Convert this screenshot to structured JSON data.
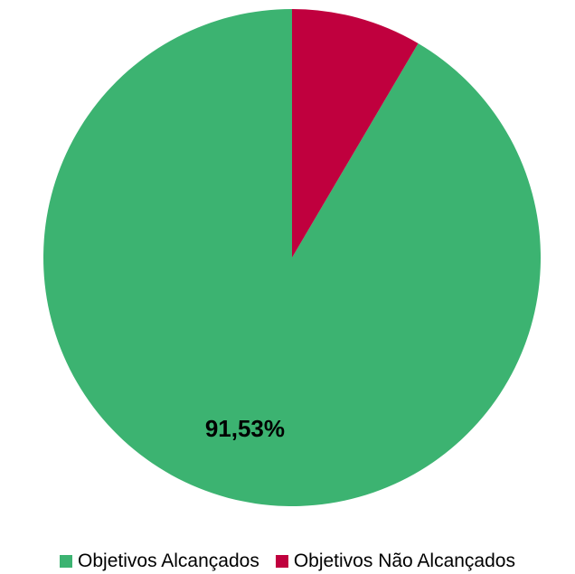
{
  "chart_data": {
    "type": "pie",
    "title": "",
    "series": [
      {
        "name": "Objetivos Alcançados",
        "value": 91.53,
        "label": "91,53%",
        "color": "#3cb371"
      },
      {
        "name": "Objetivos Não Alcançados",
        "value": 8.47,
        "label": "",
        "color": "#c0003e"
      }
    ],
    "start_angle_deg": 0,
    "direction": "counterclockwise",
    "legend_position": "bottom"
  }
}
